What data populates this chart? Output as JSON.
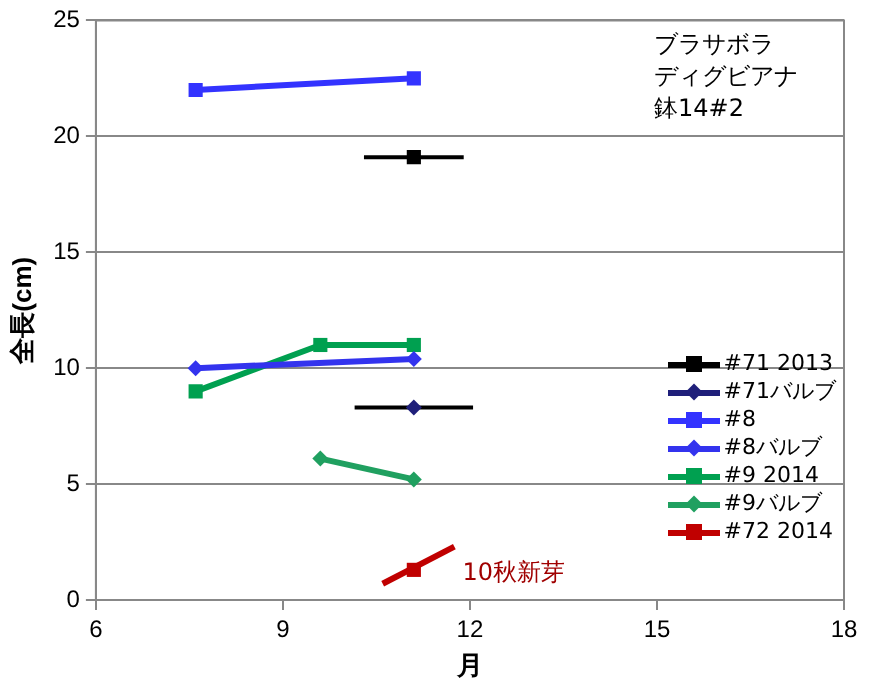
{
  "chart_data": {
    "type": "line",
    "xlabel": "月",
    "ylabel": "全長(cm)",
    "xlim": [
      6,
      18
    ],
    "xticks": [
      6,
      9,
      12,
      15,
      18
    ],
    "ylim": [
      0,
      25
    ],
    "yticks": [
      0,
      5,
      10,
      15,
      20,
      25
    ],
    "grid": "y",
    "legend": "right",
    "series": [
      {
        "name": "#71 2013",
        "color": "#000000",
        "marker": "square",
        "x": [
          11.1
        ],
        "values": [
          19.1
        ],
        "xerrors": [
          0.8
        ]
      },
      {
        "name": "#71バルブ",
        "color": "#1f1f7a",
        "marker": "diamond",
        "x": [
          11.1
        ],
        "values": [
          8.3
        ],
        "xerrors": [
          0.95
        ]
      },
      {
        "name": "#8",
        "color": "#3333ff",
        "marker": "square",
        "x": [
          7.6,
          11.1
        ],
        "values": [
          22.0,
          22.5
        ]
      },
      {
        "name": "#8バルブ",
        "color": "#3333ee",
        "marker": "diamond",
        "x": [
          7.6,
          11.1
        ],
        "values": [
          10.0,
          10.4
        ]
      },
      {
        "name": "#9 2014",
        "color": "#00a050",
        "marker": "square",
        "x": [
          7.6,
          9.6,
          11.1
        ],
        "values": [
          9.0,
          11.0,
          11.0
        ]
      },
      {
        "name": "#9バルブ",
        "color": "#20a060",
        "marker": "diamond",
        "x": [
          9.6,
          11.1
        ],
        "values": [
          6.1,
          5.2
        ]
      },
      {
        "name": "#72 2014",
        "color": "#c00000",
        "marker": "square",
        "x": [
          11.1
        ],
        "values": [
          1.3
        ]
      },
      {
        "type": "line",
        "color": "#c00000",
        "marker": "none",
        "x": [
          10.6,
          11.75
        ],
        "values": [
          0.7,
          2.3
        ]
      }
    ],
    "annotations": [
      "ブラサボラ",
      "ディグビアナ",
      "鉢14#2",
      "10秋新芽"
    ]
  }
}
